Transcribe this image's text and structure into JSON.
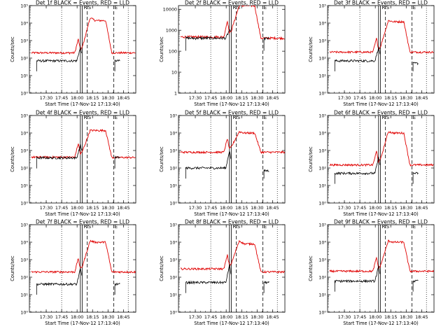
{
  "figure": {
    "xlabel": "Start Time (17-Nov-12 17:13:40)",
    "ylabel": "Counts/sec",
    "colors": {
      "events": "#000000",
      "lld": "#e00000",
      "axes": "#000000"
    },
    "x_ticks": [
      "17:30",
      "17:45",
      "18:00",
      "18:15",
      "18:30",
      "18:45"
    ],
    "marker_labels": {
      "left": "R",
      "mid": "S",
      "right": "E"
    }
  },
  "chart_data": [
    {
      "type": "line",
      "title": "Det 1f BLACK = Events, RED = LLD",
      "x_range": [
        "17:13:40",
        "18:57:00"
      ],
      "y_scale": "log",
      "y_ticks": [
        "10⁰",
        "10¹",
        "10²",
        "10³",
        "10⁴",
        "10⁵"
      ],
      "y_tick_values": [
        1,
        10,
        100,
        1000,
        10000,
        100000
      ],
      "ylim": [
        1,
        100000
      ],
      "events": {
        "base": 70,
        "peak": 400,
        "end": 70
      },
      "lld": {
        "base": 200,
        "peak": 20000,
        "plateau": 14000,
        "end": 200
      }
    },
    {
      "type": "line",
      "title": "Det 2f BLACK = Events, RED = LLD",
      "x_range": [
        "17:13:40",
        "18:57:00"
      ],
      "y_scale": "log",
      "y_ticks": [
        "1",
        "10",
        "100",
        "1000",
        "10000"
      ],
      "y_tick_values": [
        1,
        10,
        100,
        1000,
        10000
      ],
      "ylim": [
        1,
        15000
      ],
      "events": {
        "base": 420,
        "peak": 1000,
        "end": 400
      },
      "lld": {
        "base": 480,
        "peak": 15000,
        "plateau": 15000,
        "end": 420
      }
    },
    {
      "type": "line",
      "title": "Det 3f BLACK = Events, RED = LLD",
      "x_range": [
        "17:13:40",
        "18:57:00"
      ],
      "y_scale": "log",
      "y_ticks": [
        "10⁰",
        "10¹",
        "10²",
        "10³",
        "10⁴",
        "10⁵"
      ],
      "y_tick_values": [
        1,
        10,
        100,
        1000,
        10000,
        100000
      ],
      "ylim": [
        1,
        100000
      ],
      "events": {
        "base": 70,
        "peak": 400,
        "end": 50
      },
      "lld": {
        "base": 220,
        "peak": 14000,
        "plateau": 12000,
        "end": 220
      }
    },
    {
      "type": "line",
      "title": "Det 4f BLACK = Events, RED = LLD",
      "x_range": [
        "17:13:40",
        "18:57:00"
      ],
      "y_scale": "log",
      "y_ticks": [
        "10⁰",
        "10¹",
        "10²",
        "10³",
        "10⁴",
        "10⁵"
      ],
      "y_tick_values": [
        1,
        10,
        100,
        1000,
        10000,
        100000
      ],
      "ylim": [
        1,
        100000
      ],
      "events": {
        "base": 380,
        "peak": 2000,
        "end": 400
      },
      "lld": {
        "base": 420,
        "peak": 14000,
        "plateau": 14000,
        "end": 400
      }
    },
    {
      "type": "line",
      "title": "Det 5f BLACK = Events, RED = LLD",
      "x_range": [
        "17:13:40",
        "18:57:00"
      ],
      "y_scale": "log",
      "y_ticks": [
        "10⁰",
        "10¹",
        "10²",
        "10³",
        "10⁴",
        "10⁵"
      ],
      "y_tick_values": [
        1,
        10,
        100,
        1000,
        10000,
        100000
      ],
      "ylim": [
        1,
        100000
      ],
      "events": {
        "base": 100,
        "peak": 1000,
        "end": 70
      },
      "lld": {
        "base": 800,
        "peak": 12000,
        "plateau": 10000,
        "end": 800
      }
    },
    {
      "type": "line",
      "title": "Det 6f BLACK = Events, RED = LLD",
      "x_range": [
        "17:13:40",
        "18:57:00"
      ],
      "y_scale": "log",
      "y_ticks": [
        "10⁰",
        "10¹",
        "10²",
        "10³",
        "10⁴",
        "10⁵"
      ],
      "y_tick_values": [
        1,
        10,
        100,
        1000,
        10000,
        100000
      ],
      "ylim": [
        1,
        100000
      ],
      "events": {
        "base": 50,
        "peak": 400,
        "end": 50
      },
      "lld": {
        "base": 150,
        "peak": 12000,
        "plateau": 10000,
        "end": 150
      }
    },
    {
      "type": "line",
      "title": "Det 7f BLACK = Events, RED = LLD",
      "x_range": [
        "17:13:40",
        "18:57:00"
      ],
      "y_scale": "log",
      "y_ticks": [
        "10⁰",
        "10¹",
        "10²",
        "10³",
        "10⁴",
        "10⁵"
      ],
      "y_tick_values": [
        1,
        10,
        100,
        1000,
        10000,
        100000
      ],
      "ylim": [
        1,
        100000
      ],
      "events": {
        "base": 40,
        "peak": 300,
        "end": 40
      },
      "lld": {
        "base": 200,
        "peak": 12000,
        "plateau": 10000,
        "end": 200
      }
    },
    {
      "type": "line",
      "title": "Det 8f BLACK = Events, RED = LLD",
      "x_range": [
        "17:13:40",
        "18:57:00"
      ],
      "y_scale": "log",
      "y_ticks": [
        "10⁰",
        "10¹",
        "10²",
        "10³",
        "10⁴",
        "10⁵"
      ],
      "y_tick_values": [
        1,
        10,
        100,
        1000,
        10000,
        100000
      ],
      "ylim": [
        1,
        100000
      ],
      "events": {
        "base": 50,
        "peak": 500,
        "end": 50
      },
      "lld": {
        "base": 300,
        "peak": 12000,
        "plateau": 8000,
        "end": 200
      }
    },
    {
      "type": "line",
      "title": "Det 9f BLACK = Events, RED = LLD",
      "x_range": [
        "17:13:40",
        "18:57:00"
      ],
      "y_scale": "log",
      "y_ticks": [
        "10⁰",
        "10¹",
        "10²",
        "10³",
        "10⁴",
        "10⁵"
      ],
      "y_tick_values": [
        1,
        10,
        100,
        1000,
        10000,
        100000
      ],
      "ylim": [
        1,
        100000
      ],
      "events": {
        "base": 60,
        "peak": 400,
        "end": 60
      },
      "lld": {
        "base": 220,
        "peak": 12000,
        "plateau": 10000,
        "end": 220
      }
    }
  ]
}
